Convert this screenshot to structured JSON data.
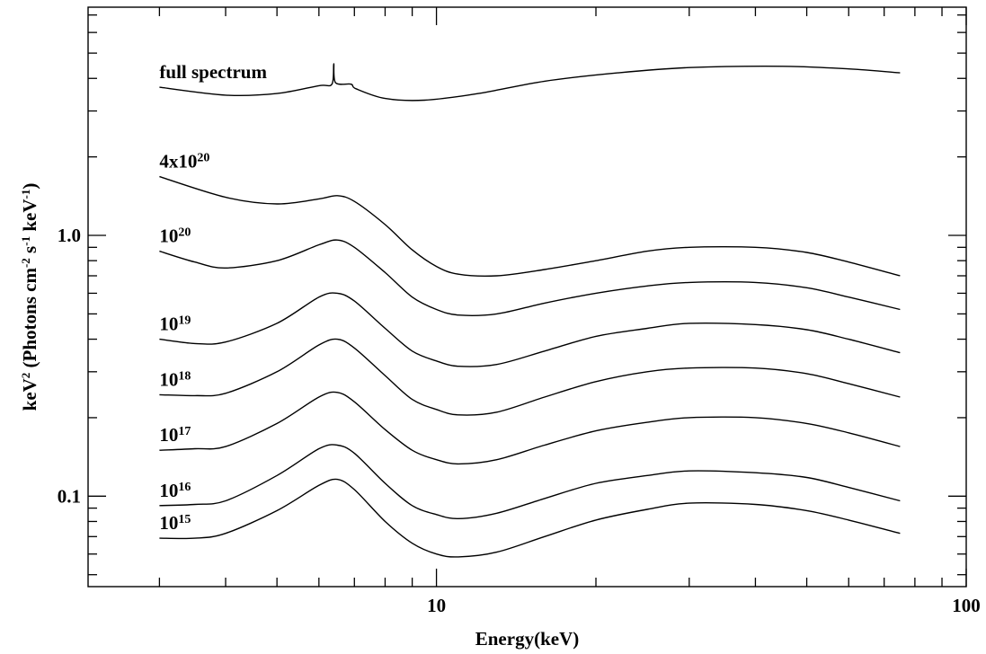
{
  "chart_data": {
    "type": "line",
    "xlabel": "Energy(keV)",
    "ylabel": "keV² (Photons cm⁻² s⁻¹ keV⁻¹)",
    "ylabel_parts": [
      {
        "t": "keV",
        "s": ""
      },
      {
        "t": "2",
        "s": "super"
      },
      {
        "t": " (Photons cm",
        "s": ""
      },
      {
        "t": "-2",
        "s": "super"
      },
      {
        "t": " s",
        "s": ""
      },
      {
        "t": "-1",
        "s": "super"
      },
      {
        "t": " keV",
        "s": ""
      },
      {
        "t": "-1",
        "s": "super"
      },
      {
        "t": ")",
        "s": ""
      }
    ],
    "xscale": "log",
    "yscale": "log",
    "xlim": [
      2.2,
      100
    ],
    "ylim": [
      0.045,
      7.5
    ],
    "x_ticks": [
      {
        "value": 10,
        "label": "10"
      },
      {
        "value": 100,
        "label": "100"
      }
    ],
    "y_ticks": [
      {
        "value": 0.1,
        "label": "0.1"
      },
      {
        "value": 1.0,
        "label": "1.0"
      }
    ],
    "grid": false,
    "series": [
      {
        "id": "full",
        "label_base": "full spectrum",
        "label_exp": "",
        "points": [
          [
            3,
            3.7
          ],
          [
            4,
            3.45
          ],
          [
            5,
            3.5
          ],
          [
            6,
            3.75
          ],
          [
            6.35,
            3.8
          ],
          [
            6.4,
            4.55
          ],
          [
            6.45,
            3.85
          ],
          [
            6.9,
            3.8
          ],
          [
            7.05,
            3.65
          ],
          [
            8,
            3.35
          ],
          [
            9.5,
            3.3
          ],
          [
            12,
            3.5
          ],
          [
            16,
            3.9
          ],
          [
            22,
            4.2
          ],
          [
            30,
            4.4
          ],
          [
            45,
            4.45
          ],
          [
            60,
            4.35
          ],
          [
            75,
            4.2
          ]
        ]
      },
      {
        "id": "s4e20",
        "label_base": "4x10",
        "label_exp": "20",
        "points": [
          [
            3,
            1.68
          ],
          [
            4,
            1.4
          ],
          [
            5,
            1.32
          ],
          [
            6,
            1.38
          ],
          [
            6.5,
            1.42
          ],
          [
            7,
            1.35
          ],
          [
            8,
            1.1
          ],
          [
            9,
            0.88
          ],
          [
            10,
            0.76
          ],
          [
            11,
            0.71
          ],
          [
            13,
            0.7
          ],
          [
            16,
            0.74
          ],
          [
            20,
            0.8
          ],
          [
            25,
            0.87
          ],
          [
            30,
            0.9
          ],
          [
            40,
            0.9
          ],
          [
            50,
            0.86
          ],
          [
            60,
            0.79
          ],
          [
            75,
            0.7
          ]
        ]
      },
      {
        "id": "s1e20",
        "label_base": "10",
        "label_exp": "20",
        "points": [
          [
            3,
            0.87
          ],
          [
            3.5,
            0.79
          ],
          [
            4,
            0.75
          ],
          [
            5,
            0.8
          ],
          [
            6,
            0.92
          ],
          [
            6.5,
            0.96
          ],
          [
            7,
            0.9
          ],
          [
            8,
            0.72
          ],
          [
            9,
            0.58
          ],
          [
            10,
            0.52
          ],
          [
            11,
            0.495
          ],
          [
            13,
            0.5
          ],
          [
            16,
            0.55
          ],
          [
            20,
            0.6
          ],
          [
            25,
            0.64
          ],
          [
            30,
            0.66
          ],
          [
            40,
            0.66
          ],
          [
            50,
            0.63
          ],
          [
            60,
            0.58
          ],
          [
            75,
            0.52
          ]
        ]
      },
      {
        "id": "s1e19",
        "label_base": "10",
        "label_exp": "19",
        "points": [
          [
            3,
            0.4
          ],
          [
            3.5,
            0.385
          ],
          [
            4,
            0.39
          ],
          [
            5,
            0.46
          ],
          [
            6,
            0.58
          ],
          [
            6.5,
            0.6
          ],
          [
            7,
            0.56
          ],
          [
            8,
            0.44
          ],
          [
            9,
            0.36
          ],
          [
            10,
            0.33
          ],
          [
            11,
            0.315
          ],
          [
            13,
            0.32
          ],
          [
            16,
            0.36
          ],
          [
            20,
            0.41
          ],
          [
            25,
            0.44
          ],
          [
            30,
            0.46
          ],
          [
            40,
            0.455
          ],
          [
            50,
            0.435
          ],
          [
            60,
            0.4
          ],
          [
            75,
            0.355
          ]
        ]
      },
      {
        "id": "s1e18",
        "label_base": "10",
        "label_exp": "18",
        "points": [
          [
            3,
            0.245
          ],
          [
            3.5,
            0.243
          ],
          [
            4,
            0.248
          ],
          [
            5,
            0.3
          ],
          [
            6,
            0.38
          ],
          [
            6.5,
            0.4
          ],
          [
            7,
            0.37
          ],
          [
            8,
            0.29
          ],
          [
            9,
            0.235
          ],
          [
            10,
            0.215
          ],
          [
            11,
            0.205
          ],
          [
            13,
            0.21
          ],
          [
            16,
            0.24
          ],
          [
            20,
            0.275
          ],
          [
            25,
            0.3
          ],
          [
            30,
            0.31
          ],
          [
            40,
            0.31
          ],
          [
            50,
            0.295
          ],
          [
            60,
            0.27
          ],
          [
            75,
            0.24
          ]
        ]
      },
      {
        "id": "s1e17",
        "label_base": "10",
        "label_exp": "17",
        "points": [
          [
            3,
            0.15
          ],
          [
            3.5,
            0.152
          ],
          [
            4,
            0.155
          ],
          [
            5,
            0.19
          ],
          [
            6,
            0.24
          ],
          [
            6.5,
            0.25
          ],
          [
            7,
            0.23
          ],
          [
            8,
            0.18
          ],
          [
            9,
            0.15
          ],
          [
            10,
            0.138
          ],
          [
            11,
            0.133
          ],
          [
            13,
            0.138
          ],
          [
            16,
            0.157
          ],
          [
            20,
            0.178
          ],
          [
            25,
            0.192
          ],
          [
            30,
            0.2
          ],
          [
            40,
            0.2
          ],
          [
            50,
            0.19
          ],
          [
            60,
            0.175
          ],
          [
            75,
            0.155
          ]
        ]
      },
      {
        "id": "s1e16",
        "label_base": "10",
        "label_exp": "16",
        "points": [
          [
            3,
            0.092
          ],
          [
            3.5,
            0.093
          ],
          [
            4,
            0.096
          ],
          [
            5,
            0.12
          ],
          [
            6,
            0.152
          ],
          [
            6.5,
            0.157
          ],
          [
            7,
            0.146
          ],
          [
            8,
            0.112
          ],
          [
            9,
            0.092
          ],
          [
            10,
            0.085
          ],
          [
            11,
            0.082
          ],
          [
            13,
            0.086
          ],
          [
            16,
            0.098
          ],
          [
            20,
            0.112
          ],
          [
            25,
            0.12
          ],
          [
            30,
            0.125
          ],
          [
            40,
            0.123
          ],
          [
            50,
            0.118
          ],
          [
            60,
            0.108
          ],
          [
            75,
            0.096
          ]
        ]
      },
      {
        "id": "s1e15",
        "label_base": "10",
        "label_exp": "15",
        "points": [
          [
            3,
            0.069
          ],
          [
            3.5,
            0.069
          ],
          [
            4,
            0.072
          ],
          [
            5,
            0.088
          ],
          [
            6,
            0.11
          ],
          [
            6.5,
            0.116
          ],
          [
            7,
            0.106
          ],
          [
            8,
            0.08
          ],
          [
            9,
            0.066
          ],
          [
            10,
            0.06
          ],
          [
            11,
            0.0585
          ],
          [
            13,
            0.061
          ],
          [
            16,
            0.07
          ],
          [
            20,
            0.081
          ],
          [
            25,
            0.089
          ],
          [
            30,
            0.094
          ],
          [
            40,
            0.093
          ],
          [
            50,
            0.088
          ],
          [
            60,
            0.081
          ],
          [
            75,
            0.072
          ]
        ]
      }
    ]
  }
}
